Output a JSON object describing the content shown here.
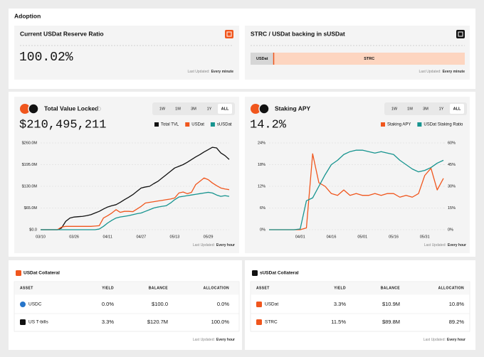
{
  "header": {
    "title": "Adoption"
  },
  "reserve": {
    "title": "Current USDat Reserve Ratio",
    "value": "100.02%",
    "updated_label": "Last Updated:",
    "updated": "Every minute"
  },
  "backing": {
    "title": "STRC / USDat backing in sUSDat",
    "segments": [
      {
        "name": "USDat",
        "value": 10.8,
        "color": "#d6d6d6"
      },
      {
        "name": "STRC",
        "value": 89.2,
        "color": "#fdd5c0"
      }
    ],
    "updated_label": "Last Updated:",
    "updated": "Every minute"
  },
  "chart_data": [
    {
      "type": "line",
      "title": "Total Value Locked",
      "current_value": "$210,495,211",
      "tabs": [
        "1W",
        "1M",
        "3M",
        "1Y",
        "ALL"
      ],
      "active_tab": "ALL",
      "categories": [
        "03/10",
        null,
        null,
        null,
        null,
        null,
        null,
        null,
        "03/26",
        null,
        null,
        null,
        null,
        null,
        null,
        null,
        "04/11",
        null,
        null,
        null,
        null,
        null,
        null,
        null,
        "04/27",
        null,
        null,
        null,
        null,
        null,
        null,
        null,
        "05/13",
        null,
        null,
        null,
        null,
        null,
        null,
        null,
        "05/29",
        null,
        null,
        null,
        null,
        null
      ],
      "series": [
        {
          "name": "Total TVL",
          "color": "#111111",
          "values": [
            0,
            0,
            0,
            0,
            0,
            5,
            25,
            35,
            38,
            39,
            40,
            42,
            45,
            50,
            55,
            62,
            68,
            72,
            75,
            82,
            90,
            97,
            105,
            115,
            125,
            128,
            130,
            138,
            145,
            155,
            165,
            175,
            185,
            190,
            195,
            202,
            210,
            218,
            225,
            233,
            240,
            247,
            245,
            230,
            222,
            210.5
          ]
        },
        {
          "name": "USDat",
          "color": "#f0561d",
          "values": [
            0,
            0,
            0,
            0,
            0,
            8,
            10,
            10,
            10,
            10,
            10,
            10,
            10,
            11,
            12,
            35,
            42,
            50,
            60,
            52,
            55,
            55,
            54,
            62,
            70,
            80,
            82,
            84,
            86,
            88,
            90,
            92,
            95,
            110,
            113,
            108,
            112,
            135,
            145,
            155,
            150,
            140,
            132,
            125,
            122,
            120
          ]
        },
        {
          "name": "sUSDat",
          "color": "#17948f",
          "values": [
            0,
            0,
            0,
            0,
            0,
            0,
            0,
            0,
            0,
            0,
            0,
            0,
            0,
            0,
            2,
            10,
            20,
            28,
            35,
            38,
            40,
            42,
            45,
            48,
            50,
            55,
            60,
            65,
            68,
            70,
            72,
            80,
            90,
            98,
            100,
            102,
            104,
            106,
            108,
            110,
            112,
            110,
            104,
            100,
            102,
            100
          ]
        }
      ],
      "ylim": [
        0,
        260
      ],
      "yticks": [
        {
          "value": 0,
          "label": "$0.0"
        },
        {
          "value": 65,
          "label": "$65.0M"
        },
        {
          "value": 130,
          "label": "$130.0M"
        },
        {
          "value": 195,
          "label": "$195.0M"
        },
        {
          "value": 260,
          "label": "$260.0M"
        }
      ],
      "grid": true,
      "updated_label": "Last Updated:",
      "updated": "Every hour"
    },
    {
      "type": "line",
      "title": "Staking APY",
      "current_value": "14.2%",
      "tabs": [
        "1W",
        "1M",
        "3M",
        "1Y",
        "ALL"
      ],
      "active_tab": "ALL",
      "categories": [
        null,
        null,
        null,
        null,
        null,
        "04/01",
        null,
        null,
        null,
        null,
        "04/16",
        null,
        null,
        null,
        null,
        "05/01",
        null,
        null,
        null,
        null,
        "05/16",
        null,
        null,
        null,
        null,
        "05/31",
        null,
        null,
        null
      ],
      "series": [
        {
          "name": "Staking APY",
          "color": "#f0561d",
          "values": [
            0,
            0,
            0,
            0,
            0,
            0,
            0.5,
            21,
            13,
            12,
            10,
            9.5,
            11,
            9.5,
            10,
            9.5,
            9.5,
            10,
            9.5,
            10,
            10,
            9,
            9.5,
            9,
            10,
            15,
            17,
            11,
            14.2
          ]
        },
        {
          "name": "USDat Staking Ratio",
          "color": "#17948f",
          "axis": "y2",
          "values": [
            0,
            0,
            0,
            0,
            0,
            0.5,
            20,
            22,
            30,
            38,
            45,
            48,
            52,
            54,
            55,
            55,
            54,
            53,
            54,
            53,
            52,
            48,
            45,
            42,
            40,
            41,
            43,
            46,
            48
          ]
        }
      ],
      "ylim": [
        0,
        24
      ],
      "yticks": [
        {
          "value": 0,
          "label": "0%"
        },
        {
          "value": 6,
          "label": "6%"
        },
        {
          "value": 12,
          "label": "12%"
        },
        {
          "value": 18,
          "label": "18%"
        },
        {
          "value": 24,
          "label": "24%"
        }
      ],
      "y2lim": [
        0,
        60
      ],
      "y2ticks": [
        {
          "value": 0,
          "label": "0%"
        },
        {
          "value": 15,
          "label": "15%"
        },
        {
          "value": 30,
          "label": "30%"
        },
        {
          "value": 45,
          "label": "45%"
        },
        {
          "value": 60,
          "label": "60%"
        }
      ],
      "grid": true,
      "updated_label": "Last Updated:",
      "updated": "Every hour"
    }
  ],
  "tables": [
    {
      "title": "USDat Collateral",
      "columns": [
        "ASSET",
        "YIELD",
        "BALANCE",
        "ALLOCATION"
      ],
      "rows": [
        [
          "USDC",
          "0.0%",
          "$100.0",
          "0.0%"
        ],
        [
          "US T-bills",
          "3.3%",
          "$120.7M",
          "100.0%"
        ]
      ],
      "updated_label": "Last Updated:",
      "updated": "Every hour"
    },
    {
      "title": "sUSDat Collateral",
      "columns": [
        "ASSET",
        "YIELD",
        "BALANCE",
        "ALLOCATION"
      ],
      "rows": [
        [
          "USDat",
          "3.3%",
          "$10.9M",
          "10.8%"
        ],
        [
          "STRC",
          "11.5%",
          "$89.8M",
          "89.2%"
        ]
      ],
      "updated_label": "Last Updated:",
      "updated": "Every hour"
    }
  ]
}
